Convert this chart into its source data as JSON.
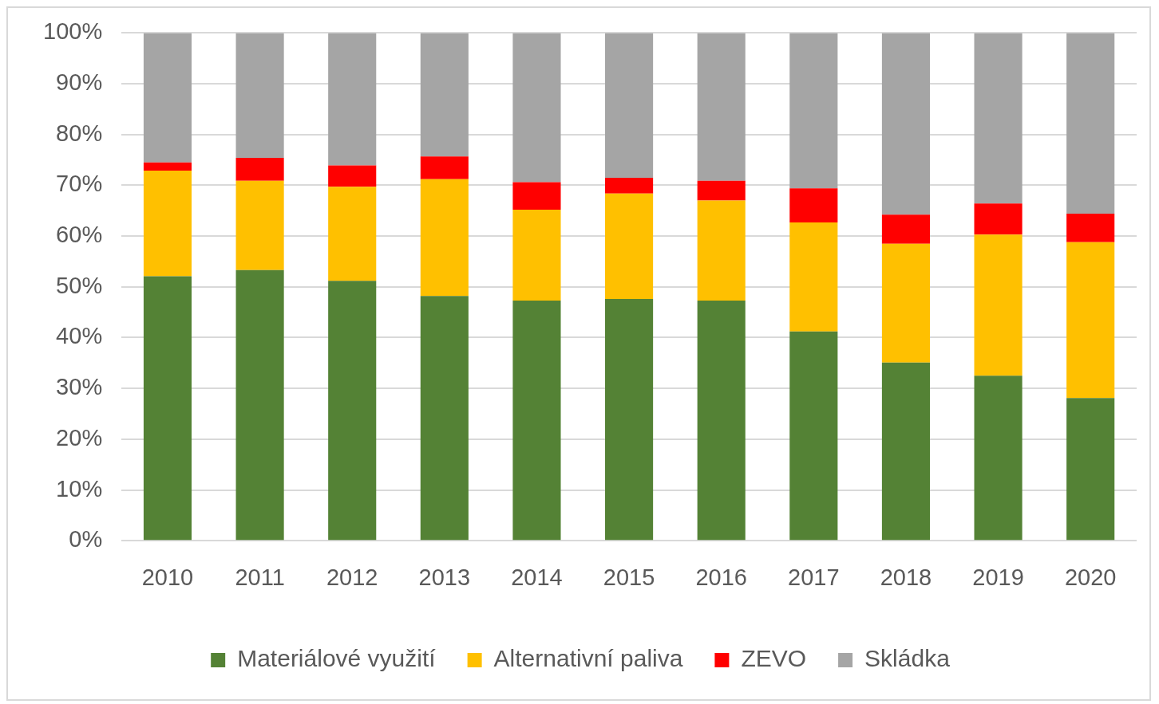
{
  "chart_data": {
    "type": "bar",
    "stacked": true,
    "categories": [
      "2010",
      "2011",
      "2012",
      "2013",
      "2014",
      "2015",
      "2016",
      "2017",
      "2018",
      "2019",
      "2020"
    ],
    "series": [
      {
        "name": "Materiálové využití",
        "color": "#548235",
        "values": [
          52.1,
          53.3,
          51.2,
          48.2,
          47.3,
          47.6,
          47.3,
          41.2,
          35.1,
          32.5,
          28.1
        ]
      },
      {
        "name": "Alternativní paliva",
        "color": "#ffc000",
        "values": [
          20.8,
          17.6,
          18.5,
          23.0,
          17.9,
          20.8,
          19.7,
          21.5,
          23.4,
          27.8,
          30.7
        ]
      },
      {
        "name": "ZEVO",
        "color": "#ff0000",
        "values": [
          1.6,
          4.5,
          4.2,
          4.5,
          5.4,
          3.1,
          3.9,
          6.7,
          5.7,
          6.1,
          5.6
        ]
      },
      {
        "name": "Skládka",
        "color": "#a5a5a5",
        "values": [
          25.5,
          24.6,
          26.1,
          24.3,
          29.4,
          28.5,
          29.1,
          30.6,
          35.8,
          33.6,
          35.6
        ]
      }
    ],
    "ylim": [
      0,
      100
    ],
    "yticks": [
      {
        "value": 0,
        "label": "0%"
      },
      {
        "value": 10,
        "label": "10%"
      },
      {
        "value": 20,
        "label": "20%"
      },
      {
        "value": 30,
        "label": "30%"
      },
      {
        "value": 40,
        "label": "40%"
      },
      {
        "value": 50,
        "label": "50%"
      },
      {
        "value": 60,
        "label": "60%"
      },
      {
        "value": 70,
        "label": "70%"
      },
      {
        "value": 80,
        "label": "80%"
      },
      {
        "value": 90,
        "label": "90%"
      },
      {
        "value": 100,
        "label": "100%"
      }
    ],
    "grid": "y",
    "legend": "bottom"
  }
}
